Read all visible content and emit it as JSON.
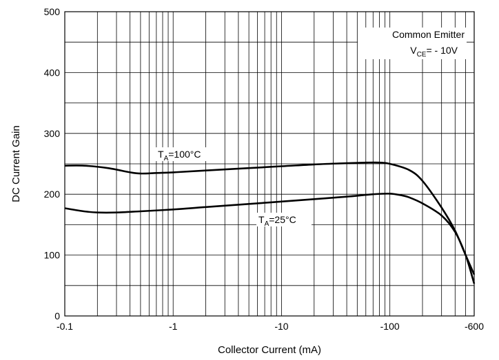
{
  "chart_data": {
    "type": "line",
    "title": "",
    "xlabel": "Collector Current (mA)",
    "ylabel": "DC Current Gain",
    "x_scale": "log",
    "x_range": [
      0.1,
      600
    ],
    "ylim": [
      0,
      500
    ],
    "grid": true,
    "x_ticks": [
      {
        "value": 0.1,
        "label": "-0.1"
      },
      {
        "value": 1,
        "label": "-1"
      },
      {
        "value": 10,
        "label": "-10"
      },
      {
        "value": 100,
        "label": "-100"
      },
      {
        "value": 600,
        "label": "-600"
      }
    ],
    "y_ticks": [
      {
        "value": 0,
        "label": "0"
      },
      {
        "value": 100,
        "label": "100"
      },
      {
        "value": 200,
        "label": "200"
      },
      {
        "value": 300,
        "label": "300"
      },
      {
        "value": 400,
        "label": "400"
      },
      {
        "value": 500,
        "label": "500"
      }
    ],
    "condition": {
      "line1": "Common Emitter",
      "line2_main": "V",
      "line2_sub": "CE",
      "line2_rest": "= - 10V"
    },
    "series": [
      {
        "label_main": "T",
        "label_sub": "A",
        "label_rest": "=100°C",
        "x": [
          0.1,
          0.15,
          0.25,
          0.4,
          0.5,
          0.7,
          1,
          2,
          5,
          10,
          20,
          40,
          60,
          80,
          100,
          150,
          200,
          300,
          400,
          500,
          600
        ],
        "y": [
          247,
          247,
          243,
          236,
          234,
          235,
          236,
          239,
          243,
          246,
          249,
          251,
          252,
          252,
          250,
          240,
          222,
          178,
          140,
          100,
          68
        ]
      },
      {
        "label_main": "T",
        "label_sub": "A",
        "label_rest": "=25°C",
        "x": [
          0.1,
          0.15,
          0.2,
          0.3,
          0.5,
          1,
          2,
          5,
          10,
          20,
          40,
          70,
          100,
          130,
          150,
          200,
          300,
          400,
          500,
          600
        ],
        "y": [
          177,
          172,
          170,
          170,
          172,
          175,
          179,
          184,
          188,
          192,
          196,
          200,
          201,
          198,
          195,
          185,
          165,
          138,
          100,
          53
        ]
      }
    ]
  }
}
